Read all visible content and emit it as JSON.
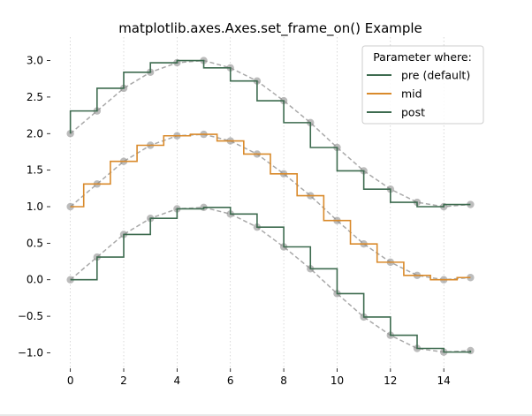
{
  "chart_data": {
    "type": "line",
    "title": "matplotlib.axes.Axes.set_frame_on() Example",
    "xlabel": "",
    "ylabel": "",
    "xlim": [
      -0.75,
      15.75
    ],
    "ylim": [
      -1.2,
      3.2
    ],
    "x_ticks": [
      0,
      2,
      4,
      6,
      8,
      10,
      12,
      14
    ],
    "x_tick_labels": [
      "0",
      "2",
      "4",
      "6",
      "8",
      "10",
      "12",
      "14"
    ],
    "y_ticks": [
      -1.0,
      -0.5,
      0.0,
      0.5,
      1.0,
      1.5,
      2.0,
      2.5,
      3.0
    ],
    "y_tick_labels": [
      "−1.0",
      "−0.5",
      "0.0",
      "0.5",
      "1.0",
      "1.5",
      "2.0",
      "2.5",
      "3.0"
    ],
    "grid": "vertical-dotted",
    "frame": false,
    "legend": {
      "title": "Parameter where:",
      "placement": "top-right",
      "entries": [
        "pre (default)",
        "mid",
        "post"
      ]
    },
    "x": [
      0,
      1,
      2,
      3,
      4,
      5,
      6,
      7,
      8,
      9,
      10,
      11,
      12,
      13,
      14,
      15
    ],
    "series": [
      {
        "name": "pre (default)",
        "drawstyle": "steps-pre",
        "color": "#3d6b4f",
        "y": [
          2.0,
          2.31,
          2.62,
          2.84,
          2.97,
          3.0,
          2.9,
          2.72,
          2.45,
          2.15,
          1.81,
          1.49,
          1.24,
          1.06,
          1.0,
          1.03
        ]
      },
      {
        "name": "mid",
        "drawstyle": "steps-mid",
        "color": "#d98a2b",
        "y": [
          1.0,
          1.31,
          1.62,
          1.84,
          1.97,
          1.99,
          1.9,
          1.72,
          1.45,
          1.15,
          0.81,
          0.49,
          0.24,
          0.06,
          0.0,
          0.03
        ]
      },
      {
        "name": "post",
        "drawstyle": "steps-post",
        "color": "#3d6b4f",
        "y": [
          0.0,
          0.31,
          0.62,
          0.84,
          0.97,
          0.99,
          0.9,
          0.72,
          0.45,
          0.15,
          -0.19,
          -0.51,
          -0.76,
          -0.94,
          -0.99,
          -0.97
        ]
      }
    ],
    "reference_style": {
      "line_color": "#a9a9a9",
      "marker_color": "#8f8f8f"
    }
  }
}
